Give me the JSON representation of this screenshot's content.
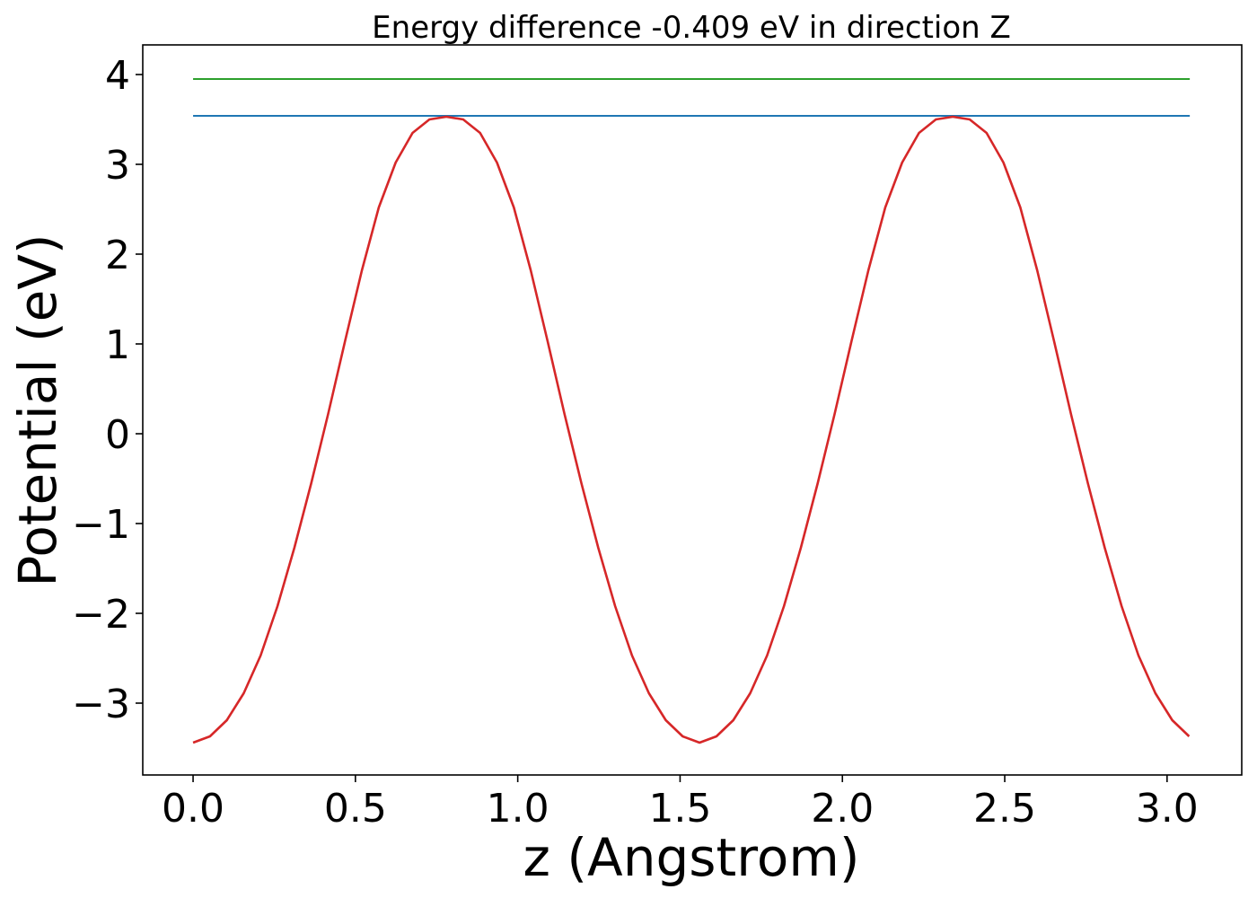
{
  "chart_data": {
    "type": "line",
    "title": "Energy difference -0.409 eV in direction Z",
    "xlabel": "z (Angstrom)",
    "ylabel": "Potential (eV)",
    "xlim": [
      -0.155,
      3.23
    ],
    "ylim": [
      -3.8,
      4.33
    ],
    "xticks": [
      0.0,
      0.5,
      1.0,
      1.5,
      2.0,
      2.5,
      3.0
    ],
    "xtick_labels": [
      "0.0",
      "0.5",
      "1.0",
      "1.5",
      "2.0",
      "2.5",
      "3.0"
    ],
    "yticks": [
      -3,
      -2,
      -1,
      0,
      1,
      2,
      3,
      4
    ],
    "ytick_labels": [
      "−3",
      "−2",
      "−1",
      "0",
      "1",
      "2",
      "3",
      "4"
    ],
    "grid": false,
    "series": [
      {
        "color": "#2ca02c",
        "x": [
          0.0,
          3.07
        ],
        "y": [
          3.95,
          3.95
        ]
      },
      {
        "color": "#1f77b4",
        "x": [
          0.0,
          3.07
        ],
        "y": [
          3.54,
          3.54
        ]
      },
      {
        "color": "#d62728",
        "x": [
          0.0,
          0.052,
          0.104,
          0.156,
          0.208,
          0.26,
          0.312,
          0.364,
          0.416,
          0.468,
          0.52,
          0.572,
          0.624,
          0.676,
          0.728,
          0.78,
          0.832,
          0.884,
          0.936,
          0.988,
          1.04,
          1.092,
          1.144,
          1.196,
          1.248,
          1.3,
          1.352,
          1.404,
          1.456,
          1.508,
          1.56,
          1.612,
          1.664,
          1.716,
          1.768,
          1.82,
          1.872,
          1.924,
          1.976,
          2.028,
          2.08,
          2.132,
          2.184,
          2.236,
          2.288,
          2.34,
          2.392,
          2.444,
          2.496,
          2.548,
          2.6,
          2.652,
          2.704,
          2.756,
          2.808,
          2.86,
          2.912,
          2.964,
          3.016,
          3.068
        ],
        "y": [
          -3.44,
          -3.37,
          -3.19,
          -2.89,
          -2.47,
          -1.92,
          -1.27,
          -0.55,
          0.22,
          1.03,
          1.82,
          2.52,
          3.02,
          3.35,
          3.5,
          3.53,
          3.5,
          3.35,
          3.02,
          2.52,
          1.82,
          1.03,
          0.22,
          -0.55,
          -1.27,
          -1.92,
          -2.47,
          -2.89,
          -3.19,
          -3.37,
          -3.44,
          -3.37,
          -3.19,
          -2.89,
          -2.47,
          -1.92,
          -1.27,
          -0.55,
          0.22,
          1.03,
          1.82,
          2.52,
          3.02,
          3.35,
          3.5,
          3.53,
          3.5,
          3.35,
          3.02,
          2.52,
          1.82,
          1.03,
          0.22,
          -0.55,
          -1.27,
          -1.92,
          -2.47,
          -2.89,
          -3.19,
          -3.37
        ]
      }
    ]
  }
}
